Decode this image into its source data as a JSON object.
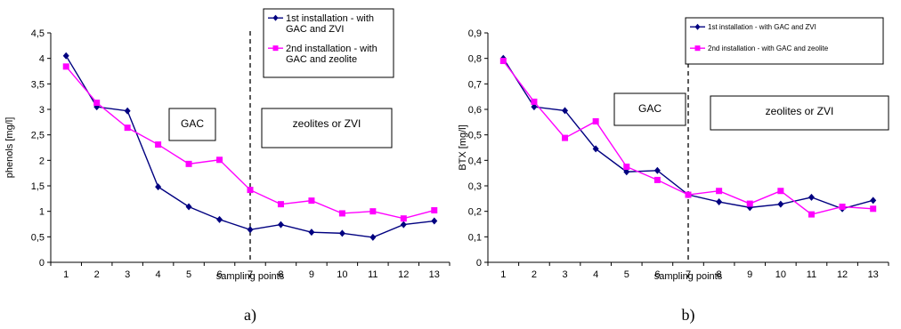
{
  "chart_data": [
    {
      "type": "line",
      "panel_label": "a)",
      "xlabel": "sampling points",
      "ylabel": "phenols [mg/l]",
      "categories": [
        "1",
        "2",
        "3",
        "4",
        "5",
        "6",
        "7",
        "8",
        "9",
        "10",
        "11",
        "12",
        "13"
      ],
      "yticks": [
        "0",
        "0,5",
        "1",
        "1,5",
        "2",
        "2,5",
        "3",
        "3,5",
        "4",
        "4,5"
      ],
      "ylim": [
        0,
        4.5
      ],
      "grid": false,
      "legend_position": "top-right",
      "series": [
        {
          "name": "1st installation - with GAC and ZVI",
          "legend_lines": [
            "1st installation - with",
            "GAC and ZVI"
          ],
          "color": "#000080",
          "marker": "diamond",
          "values": [
            4.05,
            3.05,
            2.97,
            1.48,
            1.09,
            0.84,
            0.64,
            0.74,
            0.59,
            0.57,
            0.49,
            0.74,
            0.81
          ]
        },
        {
          "name": "2nd installation - with GAC and zeolite",
          "legend_lines": [
            "2nd installation - with",
            "GAC and zeolite"
          ],
          "color": "#ff00ff",
          "marker": "square",
          "values": [
            3.84,
            3.13,
            2.64,
            2.31,
            1.93,
            2.01,
            1.42,
            1.14,
            1.21,
            0.96,
            1.0,
            0.86,
            1.02
          ]
        }
      ],
      "divider_x": "7",
      "annotations": [
        "GAC",
        "zeolites or ZVI"
      ]
    },
    {
      "type": "line",
      "panel_label": "b)",
      "xlabel": "sampling points",
      "ylabel": "BTX [mg/l]",
      "categories": [
        "1",
        "2",
        "3",
        "4",
        "5",
        "6",
        "7",
        "8",
        "9",
        "10",
        "11",
        "12",
        "13"
      ],
      "yticks": [
        "0",
        "0,1",
        "0,2",
        "0,3",
        "0,4",
        "0,5",
        "0,6",
        "0,7",
        "0,8",
        "0,9"
      ],
      "ylim": [
        0,
        0.9
      ],
      "grid": false,
      "legend_position": "top-right",
      "series": [
        {
          "name": "1st installation - with GAC and ZVI",
          "legend_lines": [
            "1st installation - with GAC and ZVI"
          ],
          "color": "#000080",
          "marker": "diamond",
          "values": [
            0.8,
            0.61,
            0.595,
            0.445,
            0.355,
            0.36,
            0.265,
            0.237,
            0.215,
            0.228,
            0.255,
            0.21,
            0.243
          ]
        },
        {
          "name": "2nd installation - with GAC and zeolite",
          "legend_lines": [
            "2nd installation - with GAC and zeolite"
          ],
          "color": "#ff00ff",
          "marker": "square",
          "values": [
            0.79,
            0.63,
            0.488,
            0.553,
            0.375,
            0.323,
            0.265,
            0.28,
            0.23,
            0.28,
            0.188,
            0.218,
            0.21
          ]
        }
      ],
      "divider_x": "7",
      "annotations": [
        "GAC",
        "zeolites or ZVI"
      ]
    }
  ]
}
